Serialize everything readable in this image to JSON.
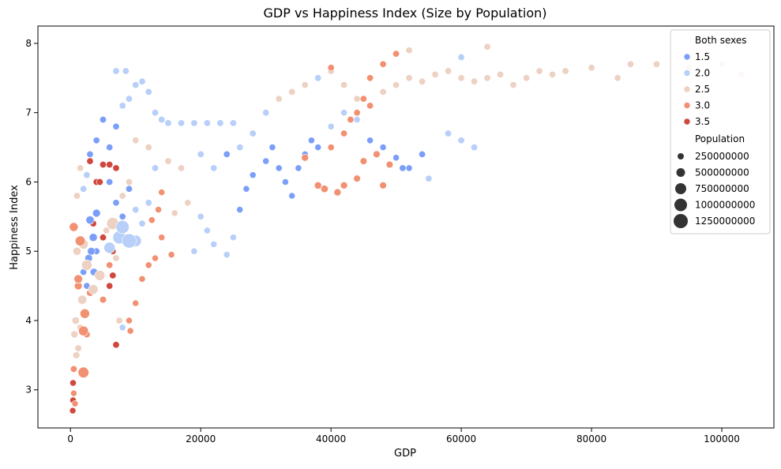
{
  "chart_data": {
    "type": "scatter",
    "title": "GDP vs Happiness Index (Size by Population)",
    "xlabel": "GDP",
    "ylabel": "Happiness Index",
    "xlim": [
      -5000,
      108000
    ],
    "ylim": [
      2.45,
      8.25
    ],
    "xticks": [
      0,
      20000,
      40000,
      60000,
      80000,
      100000
    ],
    "yticks": [
      3,
      4,
      5,
      6,
      7,
      8
    ],
    "grid": false,
    "legend_position": "top-right",
    "hue": {
      "title": "Both sexes",
      "entries": [
        {
          "label": "1.5",
          "value": 1.5,
          "color": "#7b9ff9"
        },
        {
          "label": "2.0",
          "value": 2.0,
          "color": "#b7cff9"
        },
        {
          "label": "2.5",
          "value": 2.5,
          "color": "#edd1c2"
        },
        {
          "label": "3.0",
          "value": 3.0,
          "color": "#f29072"
        },
        {
          "label": "3.5",
          "value": 3.5,
          "color": "#d0473d"
        }
      ]
    },
    "size": {
      "title": "Population",
      "entries": [
        {
          "label": "250000000",
          "value": 250000000
        },
        {
          "label": "500000000",
          "value": 500000000
        },
        {
          "label": "750000000",
          "value": 750000000
        },
        {
          "label": "1000000000",
          "value": 1000000000
        },
        {
          "label": "1250000000",
          "value": 1250000000
        }
      ]
    },
    "points": [
      [
        500,
        5.35,
        3.0,
        180000000
      ],
      [
        1500,
        5.15,
        3.0,
        320000000
      ],
      [
        2000,
        5.1,
        2.5,
        260000000
      ],
      [
        2500,
        4.8,
        2.5,
        400000000
      ],
      [
        1200,
        4.6,
        3.0,
        150000000
      ],
      [
        1800,
        4.3,
        2.5,
        200000000
      ],
      [
        2200,
        4.1,
        3.0,
        250000000
      ],
      [
        2000,
        3.85,
        3.0,
        300000000
      ],
      [
        2000,
        3.25,
        3.0,
        450000000
      ],
      [
        4500,
        4.65,
        2.5,
        380000000
      ],
      [
        3500,
        4.45,
        2.5,
        280000000
      ],
      [
        6000,
        5.05,
        2.0,
        520000000
      ],
      [
        7500,
        5.2,
        2.0,
        900000000
      ],
      [
        8000,
        5.35,
        2.0,
        950000000
      ],
      [
        9000,
        5.15,
        2.0,
        1250000000
      ],
      [
        10000,
        5.15,
        2.0,
        600000000
      ],
      [
        6500,
        5.4,
        2.5,
        700000000
      ],
      [
        3000,
        5.45,
        1.5,
        120000000
      ],
      [
        3500,
        5.2,
        1.5,
        100000000
      ],
      [
        4000,
        5.55,
        1.5,
        90000000
      ],
      [
        3200,
        5.0,
        1.5,
        80000000
      ],
      [
        2800,
        4.9,
        1.5,
        70000000
      ],
      [
        3600,
        4.7,
        1.5,
        60000000
      ],
      [
        1000,
        5.0,
        2.5,
        100000000
      ],
      [
        1200,
        4.5,
        3.0,
        80000000
      ],
      [
        800,
        4.0,
        2.5,
        60000000
      ],
      [
        600,
        3.8,
        2.5,
        40000000
      ],
      [
        900,
        3.5,
        2.5,
        30000000
      ],
      [
        500,
        3.3,
        3.0,
        20000000
      ],
      [
        400,
        3.1,
        3.5,
        15000000
      ],
      [
        500,
        2.95,
        3.0,
        12000000
      ],
      [
        400,
        2.85,
        3.5,
        10000000
      ],
      [
        350,
        2.7,
        3.5,
        10000000
      ],
      [
        700,
        2.8,
        3.0,
        10000000
      ],
      [
        1200,
        3.6,
        2.5,
        25000000
      ],
      [
        1500,
        3.9,
        2.5,
        20000000
      ],
      [
        2500,
        3.8,
        3.0,
        25000000
      ],
      [
        3000,
        4.4,
        3.0,
        30000000
      ],
      [
        5000,
        4.3,
        3.0,
        25000000
      ],
      [
        6000,
        4.5,
        3.5,
        20000000
      ],
      [
        6500,
        4.65,
        3.5,
        20000000
      ],
      [
        7000,
        3.65,
        3.5,
        20000000
      ],
      [
        7500,
        4.0,
        2.5,
        20000000
      ],
      [
        8000,
        3.9,
        2.0,
        15000000
      ],
      [
        9000,
        4.0,
        3.0,
        15000000
      ],
      [
        9200,
        3.85,
        3.0,
        15000000
      ],
      [
        10000,
        4.25,
        3.0,
        15000000
      ],
      [
        11000,
        4.6,
        3.0,
        15000000
      ],
      [
        12000,
        4.8,
        3.0,
        15000000
      ],
      [
        13000,
        4.9,
        3.0,
        15000000
      ],
      [
        14000,
        5.2,
        3.0,
        15000000
      ],
      [
        15500,
        4.95,
        3.0,
        15000000
      ],
      [
        12500,
        5.45,
        3.0,
        15000000
      ],
      [
        13500,
        5.6,
        3.0,
        15000000
      ],
      [
        14000,
        5.85,
        3.0,
        15000000
      ],
      [
        16000,
        5.55,
        2.5,
        15000000
      ],
      [
        18000,
        5.7,
        2.5,
        15000000
      ],
      [
        20000,
        5.5,
        2.0,
        15000000
      ],
      [
        21000,
        5.3,
        2.0,
        15000000
      ],
      [
        22000,
        5.1,
        2.0,
        15000000
      ],
      [
        24000,
        4.95,
        2.0,
        15000000
      ],
      [
        19000,
        5.0,
        2.0,
        15000000
      ],
      [
        25000,
        5.2,
        2.0,
        15000000
      ],
      [
        26000,
        5.6,
        1.5,
        15000000
      ],
      [
        27000,
        5.9,
        1.5,
        15000000
      ],
      [
        28000,
        6.1,
        1.5,
        15000000
      ],
      [
        30000,
        6.3,
        1.5,
        15000000
      ],
      [
        31000,
        6.5,
        1.5,
        15000000
      ],
      [
        32000,
        6.2,
        1.5,
        15000000
      ],
      [
        33000,
        6.0,
        1.5,
        15000000
      ],
      [
        34000,
        5.8,
        1.5,
        15000000
      ],
      [
        35000,
        6.2,
        1.5,
        15000000
      ],
      [
        36000,
        6.4,
        1.5,
        15000000
      ],
      [
        37000,
        6.6,
        1.5,
        15000000
      ],
      [
        38000,
        6.5,
        1.5,
        15000000
      ],
      [
        40000,
        6.8,
        2.0,
        15000000
      ],
      [
        42000,
        7.0,
        2.0,
        15000000
      ],
      [
        44000,
        6.9,
        2.0,
        15000000
      ],
      [
        46000,
        6.6,
        1.5,
        15000000
      ],
      [
        48000,
        6.5,
        1.5,
        15000000
      ],
      [
        50000,
        6.35,
        1.5,
        15000000
      ],
      [
        52000,
        6.2,
        1.5,
        15000000
      ],
      [
        36000,
        6.35,
        3.0,
        40000000
      ],
      [
        38000,
        5.95,
        3.0,
        50000000
      ],
      [
        39000,
        5.9,
        3.0,
        60000000
      ],
      [
        41000,
        5.85,
        3.0,
        45000000
      ],
      [
        42000,
        5.95,
        3.0,
        40000000
      ],
      [
        44000,
        6.05,
        3.0,
        35000000
      ],
      [
        45000,
        6.3,
        3.0,
        30000000
      ],
      [
        47000,
        6.4,
        3.0,
        30000000
      ],
      [
        49000,
        6.25,
        3.0,
        30000000
      ],
      [
        48000,
        5.95,
        3.0,
        30000000
      ],
      [
        40000,
        6.5,
        3.0,
        20000000
      ],
      [
        42000,
        6.7,
        3.0,
        20000000
      ],
      [
        43000,
        6.9,
        3.0,
        20000000
      ],
      [
        44000,
        7.0,
        3.0,
        20000000
      ],
      [
        45000,
        7.2,
        3.0,
        20000000
      ],
      [
        46000,
        7.1,
        3.0,
        20000000
      ],
      [
        48000,
        7.3,
        2.5,
        20000000
      ],
      [
        50000,
        7.4,
        2.5,
        20000000
      ],
      [
        52000,
        7.5,
        2.5,
        20000000
      ],
      [
        54000,
        7.45,
        2.5,
        20000000
      ],
      [
        56000,
        7.55,
        2.5,
        20000000
      ],
      [
        58000,
        7.6,
        2.5,
        20000000
      ],
      [
        60000,
        7.5,
        2.5,
        20000000
      ],
      [
        62000,
        7.45,
        2.5,
        20000000
      ],
      [
        64000,
        7.5,
        2.5,
        20000000
      ],
      [
        66000,
        7.55,
        2.5,
        20000000
      ],
      [
        68000,
        7.4,
        2.5,
        20000000
      ],
      [
        70000,
        7.5,
        2.5,
        20000000
      ],
      [
        72000,
        7.6,
        2.5,
        20000000
      ],
      [
        74000,
        7.55,
        2.5,
        20000000
      ],
      [
        76000,
        7.6,
        2.5,
        20000000
      ],
      [
        80000,
        7.65,
        2.5,
        20000000
      ],
      [
        84000,
        7.5,
        2.5,
        20000000
      ],
      [
        86000,
        7.7,
        2.5,
        20000000
      ],
      [
        90000,
        7.7,
        2.5,
        20000000
      ],
      [
        95000,
        7.65,
        2.5,
        20000000
      ],
      [
        100000,
        7.7,
        2.5,
        20000000
      ],
      [
        103000,
        7.55,
        2.5,
        20000000
      ],
      [
        50000,
        7.85,
        3.0,
        20000000
      ],
      [
        52000,
        7.9,
        2.5,
        20000000
      ],
      [
        60000,
        7.8,
        2.0,
        20000000
      ],
      [
        64000,
        7.95,
        2.5,
        20000000
      ],
      [
        58000,
        6.7,
        2.0,
        20000000
      ],
      [
        60000,
        6.6,
        2.0,
        20000000
      ],
      [
        62000,
        6.5,
        2.0,
        20000000
      ],
      [
        55000,
        6.05,
        2.0,
        20000000
      ],
      [
        54000,
        6.4,
        1.5,
        20000000
      ],
      [
        51000,
        6.2,
        1.5,
        20000000
      ],
      [
        6000,
        6.5,
        1.5,
        20000000
      ],
      [
        7000,
        6.8,
        1.5,
        20000000
      ],
      [
        8000,
        7.1,
        2.0,
        20000000
      ],
      [
        9000,
        7.2,
        2.0,
        20000000
      ],
      [
        10000,
        7.4,
        2.0,
        20000000
      ],
      [
        11000,
        7.45,
        2.0,
        20000000
      ],
      [
        8500,
        7.6,
        2.0,
        20000000
      ],
      [
        7000,
        7.6,
        2.0,
        20000000
      ],
      [
        12000,
        7.3,
        2.0,
        20000000
      ],
      [
        13000,
        7.0,
        2.0,
        20000000
      ],
      [
        14000,
        6.9,
        2.0,
        20000000
      ],
      [
        15000,
        6.85,
        2.0,
        20000000
      ],
      [
        17000,
        6.85,
        2.0,
        20000000
      ],
      [
        19000,
        6.85,
        2.0,
        20000000
      ],
      [
        21000,
        6.85,
        2.0,
        20000000
      ],
      [
        23000,
        6.85,
        2.0,
        20000000
      ],
      [
        25000,
        6.85,
        2.0,
        20000000
      ],
      [
        3000,
        6.3,
        3.5,
        20000000
      ],
      [
        4000,
        6.0,
        3.5,
        20000000
      ],
      [
        5000,
        6.25,
        3.5,
        20000000
      ],
      [
        6000,
        6.25,
        3.5,
        20000000
      ],
      [
        7000,
        6.2,
        3.5,
        20000000
      ],
      [
        4500,
        6.0,
        3.5,
        20000000
      ],
      [
        3500,
        5.4,
        3.5,
        20000000
      ],
      [
        5000,
        5.2,
        3.5,
        20000000
      ],
      [
        6500,
        5.0,
        3.5,
        20000000
      ],
      [
        2000,
        5.9,
        2.0,
        20000000
      ],
      [
        2500,
        6.1,
        2.0,
        20000000
      ],
      [
        3000,
        6.4,
        1.5,
        20000000
      ],
      [
        4000,
        6.6,
        1.5,
        20000000
      ],
      [
        5000,
        6.9,
        1.5,
        20000000
      ],
      [
        1500,
        6.2,
        2.5,
        20000000
      ],
      [
        1000,
        5.8,
        2.5,
        20000000
      ],
      [
        8000,
        5.8,
        2.5,
        20000000
      ],
      [
        9000,
        6.0,
        2.5,
        20000000
      ],
      [
        10000,
        5.6,
        2.0,
        20000000
      ],
      [
        11000,
        5.4,
        2.0,
        20000000
      ],
      [
        12000,
        5.7,
        2.0,
        20000000
      ],
      [
        13000,
        6.2,
        2.0,
        20000000
      ],
      [
        15000,
        6.3,
        2.5,
        20000000
      ],
      [
        17000,
        6.2,
        2.5,
        20000000
      ],
      [
        20000,
        6.4,
        2.0,
        20000000
      ],
      [
        22000,
        6.2,
        2.0,
        20000000
      ],
      [
        24000,
        6.4,
        1.5,
        20000000
      ],
      [
        26000,
        6.5,
        2.0,
        20000000
      ],
      [
        28000,
        6.7,
        2.0,
        20000000
      ],
      [
        30000,
        7.0,
        2.0,
        20000000
      ],
      [
        32000,
        7.2,
        2.5,
        20000000
      ],
      [
        34000,
        7.3,
        2.5,
        20000000
      ],
      [
        36000,
        7.4,
        2.5,
        20000000
      ],
      [
        38000,
        7.5,
        2.0,
        20000000
      ],
      [
        40000,
        7.6,
        2.5,
        20000000
      ],
      [
        42000,
        7.4,
        2.5,
        20000000
      ],
      [
        44000,
        7.2,
        2.5,
        20000000
      ],
      [
        46000,
        7.5,
        3.0,
        20000000
      ],
      [
        48000,
        7.7,
        3.0,
        20000000
      ],
      [
        40000,
        7.65,
        3.0,
        20000000
      ],
      [
        6000,
        6.0,
        1.5,
        20000000
      ],
      [
        7000,
        5.7,
        1.5,
        20000000
      ],
      [
        8000,
        5.5,
        1.5,
        20000000
      ],
      [
        9000,
        5.9,
        1.5,
        20000000
      ],
      [
        4000,
        5.0,
        1.5,
        20000000
      ],
      [
        2000,
        4.7,
        1.5,
        20000000
      ],
      [
        2500,
        4.5,
        1.5,
        20000000
      ],
      [
        5500,
        5.3,
        2.5,
        20000000
      ],
      [
        6000,
        4.8,
        3.0,
        20000000
      ],
      [
        7000,
        4.9,
        2.5,
        20000000
      ],
      [
        12000,
        6.5,
        2.5,
        20000000
      ],
      [
        10000,
        6.6,
        2.5,
        20000000
      ]
    ]
  }
}
